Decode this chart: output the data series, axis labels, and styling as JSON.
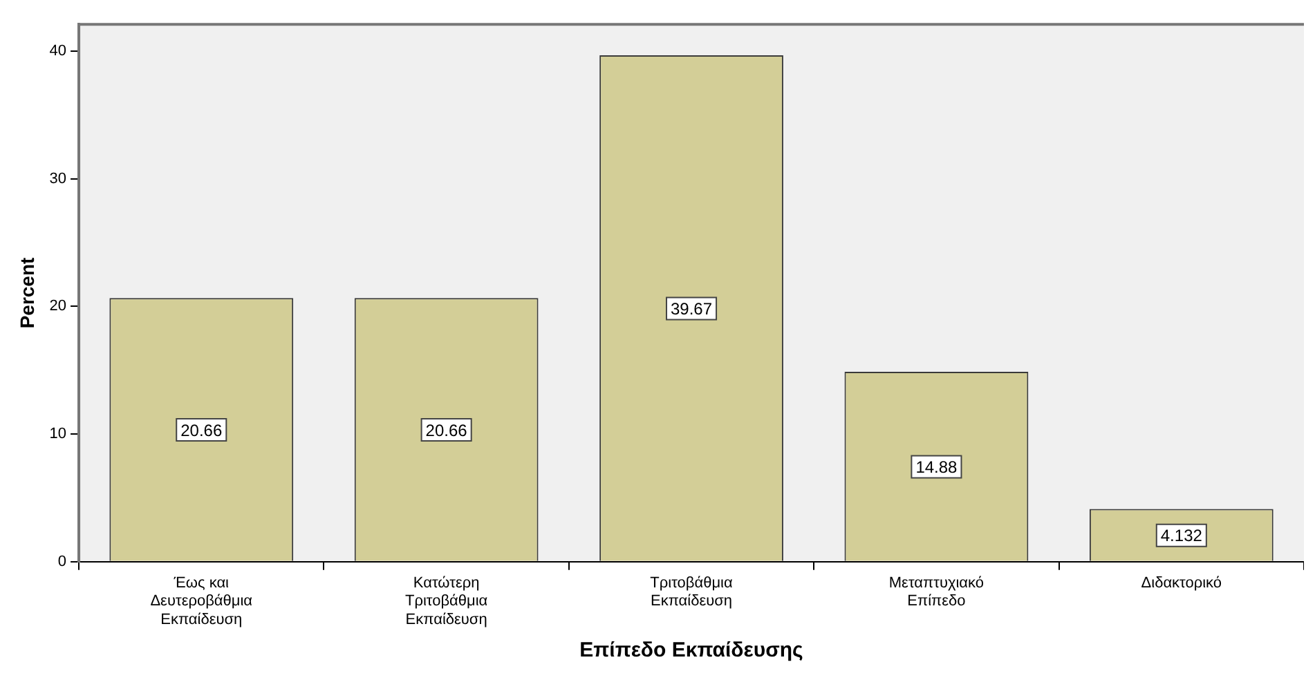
{
  "chart_data": {
    "type": "bar",
    "xlabel": "Επίπεδο Εκπαίδευσης",
    "ylabel": "Percent",
    "categories": [
      "Έως και Δευτεροβάθμια Εκπαίδευση",
      "Κατώτερη Τριτοβάθμια Εκπαίδευση",
      "Τριτοβάθμια Εκπαίδευση",
      "Μεταπτυχιακό Επίπεδο",
      "Διδακτορικό"
    ],
    "values": [
      20.66,
      20.66,
      39.67,
      14.88,
      4.132
    ],
    "color": "#d3ce97",
    "ylim": [
      0,
      42.1
    ],
    "yticks": [
      0,
      10,
      20,
      30,
      40
    ],
    "grid": false,
    "legend": false,
    "data_labels": true
  }
}
